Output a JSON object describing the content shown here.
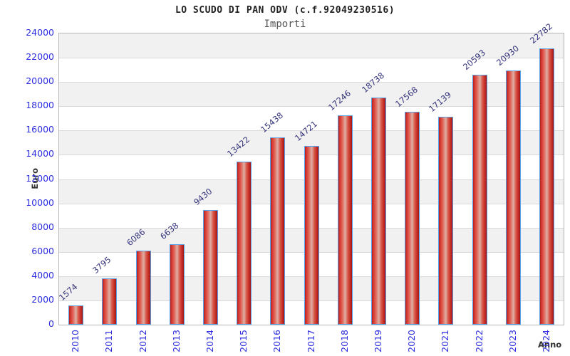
{
  "chart_data": {
    "type": "bar",
    "title": "LO SCUDO DI PAN ODV (c.f.92049230516)",
    "subtitle": "Importi",
    "categories": [
      "2010",
      "2011",
      "2012",
      "2013",
      "2014",
      "2015",
      "2016",
      "2017",
      "2018",
      "2019",
      "2020",
      "2021",
      "2022",
      "2023",
      "2024"
    ],
    "values": [
      1574,
      3795,
      6086,
      6638,
      9430,
      13422,
      15438,
      14721,
      17246,
      18738,
      17568,
      17139,
      20593,
      20930,
      22782
    ],
    "xlabel": "Anno",
    "ylabel": "Euro",
    "ylim": [
      0,
      24000
    ],
    "ytick_step": 2000,
    "grid": "on",
    "legend": "none",
    "band_style": "alternating-horizontal"
  },
  "colors": {
    "title": "#222222",
    "subtitle": "#555555",
    "tick_label": "#2e2ede",
    "value_label": "#34347c",
    "axis_title": "#333333",
    "bar_fill": "#d83a30",
    "bar_border": "#58a2e8",
    "band": "#f1f1f1",
    "gridline": "#d9d9d9",
    "plot_border": "#b5b5b5"
  }
}
